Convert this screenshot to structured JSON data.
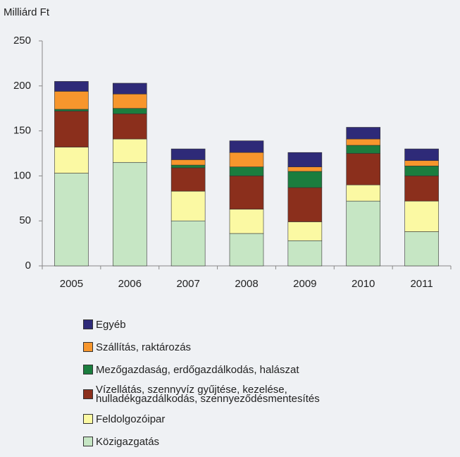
{
  "chart_data": {
    "type": "stacked_bar",
    "ylabel": "Milliárd Ft",
    "categories": [
      "2005",
      "2006",
      "2007",
      "2008",
      "2009",
      "2010",
      "2011"
    ],
    "series": [
      {
        "name": "Közigazgatás",
        "color": "#c6e6c4",
        "values": [
          103,
          115,
          50,
          36,
          28,
          72,
          38
        ]
      },
      {
        "name": "Feldolgozóipar",
        "color": "#fbf9a3",
        "values": [
          29,
          26,
          33,
          27,
          21,
          18,
          34
        ]
      },
      {
        "name": "Vízellátás, szennyvíz gyűjtése, kezelése, hulladékgazdálkodás, szennyeződésmentesítés",
        "color": "#8b2f1c",
        "values": [
          40,
          28,
          26,
          37,
          38,
          35,
          28
        ]
      },
      {
        "name": "Mezőgazdaság, erdőgazdálkodás, halászat",
        "color": "#1b7d3e",
        "values": [
          2,
          6,
          3,
          10,
          18,
          9,
          11
        ]
      },
      {
        "name": "Szállítás, raktározás",
        "color": "#f7962d",
        "values": [
          20,
          16,
          6,
          16,
          5,
          7,
          6
        ]
      },
      {
        "name": "Egyéb",
        "color": "#2e2a78",
        "values": [
          11,
          12,
          12,
          13,
          16,
          13,
          13
        ]
      }
    ],
    "ylim": [
      0,
      250
    ],
    "yticks": [
      0,
      50,
      100,
      150,
      200,
      250
    ],
    "grid": false
  }
}
